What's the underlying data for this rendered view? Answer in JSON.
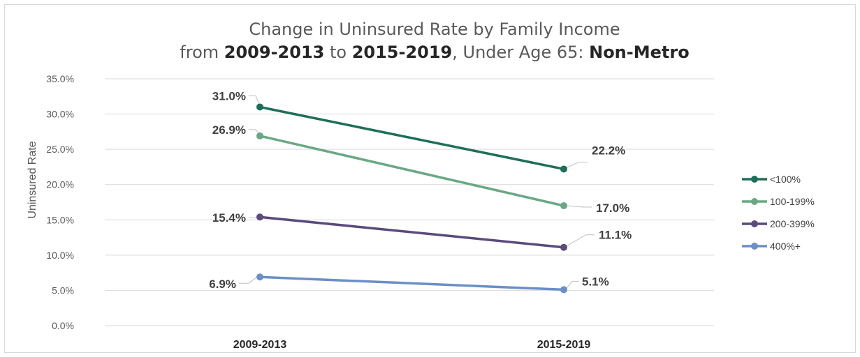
{
  "chart_data": {
    "type": "line",
    "title_line1": "Change in Uninsured Rate by Family Income",
    "title_line2": {
      "p1": "from ",
      "b1": "2009-2013",
      "p2": " to ",
      "b2": "2015-2019",
      "p3": ", Under Age 65: ",
      "b3": "Non-Metro"
    },
    "ylabel": "Uninsured Rate",
    "xlabel": "",
    "categories": [
      "2009-2013",
      "2015-2019"
    ],
    "ylim": [
      0,
      35
    ],
    "yticks": [
      {
        "value": 0,
        "label": "0.0%"
      },
      {
        "value": 5,
        "label": "5.0%"
      },
      {
        "value": 10,
        "label": "10.0%"
      },
      {
        "value": 15,
        "label": "15.0%"
      },
      {
        "value": 20,
        "label": "20.0%"
      },
      {
        "value": 25,
        "label": "25.0%"
      },
      {
        "value": 30,
        "label": "30.0%"
      },
      {
        "value": 35,
        "label": "35.0%"
      }
    ],
    "grid": true,
    "legend_position": "right",
    "series": [
      {
        "name": "<100%",
        "color": "#1e6e5a",
        "values": [
          31.0,
          22.2
        ],
        "labels": [
          "31.0%",
          "22.2%"
        ]
      },
      {
        "name": "100-199%",
        "color": "#6aa884",
        "values": [
          26.9,
          17.0
        ],
        "labels": [
          "26.9%",
          "17.0%"
        ]
      },
      {
        "name": "200-399%",
        "color": "#5b4a7a",
        "values": [
          15.4,
          11.1
        ],
        "labels": [
          "15.4%",
          "11.1%"
        ]
      },
      {
        "name": "400%+",
        "color": "#6b8fc7",
        "values": [
          6.9,
          5.1
        ],
        "labels": [
          "6.9%",
          "5.1%"
        ]
      }
    ]
  }
}
